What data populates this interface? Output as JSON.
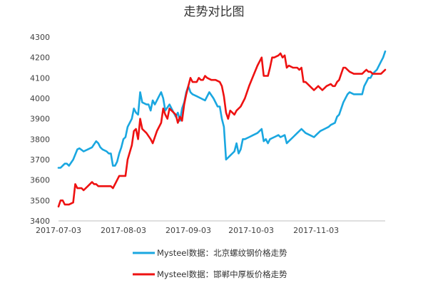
{
  "chart_data": {
    "type": "line",
    "title": "走势对比图",
    "xlabel": "",
    "ylabel": "",
    "ylim": [
      3400,
      4300
    ],
    "yticks": [
      "3400",
      "3500",
      "3600",
      "3700",
      "3800",
      "3900",
      "4000",
      "4100",
      "4200",
      "4300"
    ],
    "xlim": [
      "2017-07-03",
      "2017-12-06"
    ],
    "xticks": [
      "2017-07-03",
      "2017-08-03",
      "2017-09-03",
      "2017-10-03",
      "2017-11-03"
    ],
    "grid": false,
    "legend": "bottom",
    "series": [
      {
        "name": "Mysteel数据：北京螺纹钢价格走势",
        "color": "#1aa7e0",
        "points": [
          [
            "2017-07-03",
            3660
          ],
          [
            "2017-07-04",
            3660
          ],
          [
            "2017-07-05",
            3670
          ],
          [
            "2017-07-06",
            3680
          ],
          [
            "2017-07-07",
            3680
          ],
          [
            "2017-07-08",
            3670
          ],
          [
            "2017-07-10",
            3700
          ],
          [
            "2017-07-12",
            3750
          ],
          [
            "2017-07-13",
            3755
          ],
          [
            "2017-07-15",
            3740
          ],
          [
            "2017-07-17",
            3750
          ],
          [
            "2017-07-19",
            3760
          ],
          [
            "2017-07-21",
            3790
          ],
          [
            "2017-07-22",
            3780
          ],
          [
            "2017-07-23",
            3760
          ],
          [
            "2017-07-24",
            3750
          ],
          [
            "2017-07-26",
            3740
          ],
          [
            "2017-07-27",
            3730
          ],
          [
            "2017-07-28",
            3730
          ],
          [
            "2017-07-29",
            3670
          ],
          [
            "2017-07-30",
            3670
          ],
          [
            "2017-07-31",
            3690
          ],
          [
            "2017-08-01",
            3730
          ],
          [
            "2017-08-02",
            3760
          ],
          [
            "2017-08-03",
            3800
          ],
          [
            "2017-08-04",
            3810
          ],
          [
            "2017-08-05",
            3860
          ],
          [
            "2017-08-07",
            3900
          ],
          [
            "2017-08-08",
            3950
          ],
          [
            "2017-08-09",
            3930
          ],
          [
            "2017-08-10",
            3920
          ],
          [
            "2017-08-11",
            4030
          ],
          [
            "2017-08-12",
            3980
          ],
          [
            "2017-08-14",
            3970
          ],
          [
            "2017-08-15",
            3970
          ],
          [
            "2017-08-16",
            3940
          ],
          [
            "2017-08-17",
            3990
          ],
          [
            "2017-08-18",
            3970
          ],
          [
            "2017-08-20",
            4010
          ],
          [
            "2017-08-21",
            4030
          ],
          [
            "2017-08-22",
            4000
          ],
          [
            "2017-08-23",
            3940
          ],
          [
            "2017-08-25",
            3970
          ],
          [
            "2017-08-26",
            3950
          ],
          [
            "2017-08-28",
            3910
          ],
          [
            "2017-08-29",
            3930
          ],
          [
            "2017-08-30",
            3890
          ],
          [
            "2017-08-31",
            3950
          ],
          [
            "2017-09-01",
            3980
          ],
          [
            "2017-09-02",
            4030
          ],
          [
            "2017-09-03",
            4060
          ],
          [
            "2017-09-04",
            4030
          ],
          [
            "2017-09-05",
            4020
          ],
          [
            "2017-09-07",
            4010
          ],
          [
            "2017-09-09",
            4000
          ],
          [
            "2017-09-11",
            3990
          ],
          [
            "2017-09-13",
            4030
          ],
          [
            "2017-09-15",
            4000
          ],
          [
            "2017-09-17",
            3960
          ],
          [
            "2017-09-18",
            3960
          ],
          [
            "2017-09-19",
            3900
          ],
          [
            "2017-09-20",
            3860
          ],
          [
            "2017-09-21",
            3700
          ],
          [
            "2017-09-23",
            3720
          ],
          [
            "2017-09-25",
            3740
          ],
          [
            "2017-09-26",
            3780
          ],
          [
            "2017-09-27",
            3730
          ],
          [
            "2017-09-28",
            3750
          ],
          [
            "2017-09-29",
            3800
          ],
          [
            "2017-09-30",
            3800
          ],
          [
            "2017-10-02",
            3810
          ],
          [
            "2017-10-04",
            3820
          ],
          [
            "2017-10-06",
            3830
          ],
          [
            "2017-10-07",
            3840
          ],
          [
            "2017-10-08",
            3850
          ],
          [
            "2017-10-09",
            3790
          ],
          [
            "2017-10-10",
            3800
          ],
          [
            "2017-10-11",
            3780
          ],
          [
            "2017-10-12",
            3800
          ],
          [
            "2017-10-14",
            3810
          ],
          [
            "2017-10-16",
            3820
          ],
          [
            "2017-10-17",
            3810
          ],
          [
            "2017-10-19",
            3820
          ],
          [
            "2017-10-20",
            3780
          ],
          [
            "2017-10-21",
            3790
          ],
          [
            "2017-10-23",
            3810
          ],
          [
            "2017-10-25",
            3830
          ],
          [
            "2017-10-27",
            3850
          ],
          [
            "2017-10-29",
            3830
          ],
          [
            "2017-10-31",
            3820
          ],
          [
            "2017-11-02",
            3810
          ],
          [
            "2017-11-03",
            3820
          ],
          [
            "2017-11-05",
            3840
          ],
          [
            "2017-11-07",
            3850
          ],
          [
            "2017-11-09",
            3860
          ],
          [
            "2017-11-10",
            3870
          ],
          [
            "2017-11-12",
            3880
          ],
          [
            "2017-11-13",
            3910
          ],
          [
            "2017-11-14",
            3920
          ],
          [
            "2017-11-16",
            3980
          ],
          [
            "2017-11-18",
            4020
          ],
          [
            "2017-11-19",
            4030
          ],
          [
            "2017-11-21",
            4020
          ],
          [
            "2017-11-23",
            4020
          ],
          [
            "2017-11-25",
            4020
          ],
          [
            "2017-11-26",
            4060
          ],
          [
            "2017-11-27",
            4080
          ],
          [
            "2017-11-28",
            4100
          ],
          [
            "2017-11-29",
            4100
          ],
          [
            "2017-11-30",
            4120
          ],
          [
            "2017-12-02",
            4140
          ],
          [
            "2017-12-04",
            4180
          ],
          [
            "2017-12-05",
            4200
          ],
          [
            "2017-12-06",
            4230
          ]
        ]
      },
      {
        "name": "Mysteel数据：邯郸中厚板价格走势",
        "color": "#ee1111",
        "points": [
          [
            "2017-07-03",
            3470
          ],
          [
            "2017-07-04",
            3500
          ],
          [
            "2017-07-05",
            3500
          ],
          [
            "2017-07-06",
            3480
          ],
          [
            "2017-07-08",
            3480
          ],
          [
            "2017-07-10",
            3490
          ],
          [
            "2017-07-11",
            3580
          ],
          [
            "2017-07-12",
            3560
          ],
          [
            "2017-07-13",
            3560
          ],
          [
            "2017-07-14",
            3560
          ],
          [
            "2017-07-15",
            3550
          ],
          [
            "2017-07-17",
            3570
          ],
          [
            "2017-07-18",
            3580
          ],
          [
            "2017-07-19",
            3590
          ],
          [
            "2017-07-20",
            3580
          ],
          [
            "2017-07-21",
            3580
          ],
          [
            "2017-07-22",
            3570
          ],
          [
            "2017-07-24",
            3570
          ],
          [
            "2017-07-26",
            3570
          ],
          [
            "2017-07-28",
            3570
          ],
          [
            "2017-07-29",
            3560
          ],
          [
            "2017-07-30",
            3580
          ],
          [
            "2017-07-31",
            3600
          ],
          [
            "2017-08-01",
            3620
          ],
          [
            "2017-08-03",
            3620
          ],
          [
            "2017-08-04",
            3620
          ],
          [
            "2017-08-05",
            3700
          ],
          [
            "2017-08-07",
            3770
          ],
          [
            "2017-08-08",
            3840
          ],
          [
            "2017-08-09",
            3850
          ],
          [
            "2017-08-10",
            3800
          ],
          [
            "2017-08-11",
            3900
          ],
          [
            "2017-08-12",
            3850
          ],
          [
            "2017-08-14",
            3830
          ],
          [
            "2017-08-16",
            3800
          ],
          [
            "2017-08-17",
            3780
          ],
          [
            "2017-08-19",
            3840
          ],
          [
            "2017-08-21",
            3880
          ],
          [
            "2017-08-22",
            3950
          ],
          [
            "2017-08-23",
            3920
          ],
          [
            "2017-08-24",
            3900
          ],
          [
            "2017-08-25",
            3950
          ],
          [
            "2017-08-26",
            3940
          ],
          [
            "2017-08-28",
            3920
          ],
          [
            "2017-08-29",
            3880
          ],
          [
            "2017-08-30",
            3910
          ],
          [
            "2017-08-31",
            3890
          ],
          [
            "2017-09-01",
            3970
          ],
          [
            "2017-09-02",
            4020
          ],
          [
            "2017-09-03",
            4060
          ],
          [
            "2017-09-04",
            4100
          ],
          [
            "2017-09-05",
            4080
          ],
          [
            "2017-09-07",
            4080
          ],
          [
            "2017-09-08",
            4100
          ],
          [
            "2017-09-09",
            4090
          ],
          [
            "2017-09-10",
            4090
          ],
          [
            "2017-09-11",
            4110
          ],
          [
            "2017-09-12",
            4100
          ],
          [
            "2017-09-14",
            4090
          ],
          [
            "2017-09-16",
            4090
          ],
          [
            "2017-09-18",
            4080
          ],
          [
            "2017-09-19",
            4060
          ],
          [
            "2017-09-20",
            4010
          ],
          [
            "2017-09-21",
            3930
          ],
          [
            "2017-09-22",
            3900
          ],
          [
            "2017-09-23",
            3940
          ],
          [
            "2017-09-24",
            3930
          ],
          [
            "2017-09-25",
            3920
          ],
          [
            "2017-09-26",
            3940
          ],
          [
            "2017-09-28",
            3960
          ],
          [
            "2017-09-30",
            4000
          ],
          [
            "2017-10-02",
            4060
          ],
          [
            "2017-10-04",
            4110
          ],
          [
            "2017-10-06",
            4160
          ],
          [
            "2017-10-08",
            4200
          ],
          [
            "2017-10-09",
            4110
          ],
          [
            "2017-10-10",
            4110
          ],
          [
            "2017-10-11",
            4110
          ],
          [
            "2017-10-12",
            4150
          ],
          [
            "2017-10-13",
            4200
          ],
          [
            "2017-10-14",
            4200
          ],
          [
            "2017-10-16",
            4210
          ],
          [
            "2017-10-17",
            4220
          ],
          [
            "2017-10-18",
            4200
          ],
          [
            "2017-10-19",
            4210
          ],
          [
            "2017-10-20",
            4150
          ],
          [
            "2017-10-21",
            4160
          ],
          [
            "2017-10-23",
            4150
          ],
          [
            "2017-10-25",
            4150
          ],
          [
            "2017-10-26",
            4140
          ],
          [
            "2017-10-27",
            4150
          ],
          [
            "2017-10-28",
            4080
          ],
          [
            "2017-10-29",
            4080
          ],
          [
            "2017-10-31",
            4060
          ],
          [
            "2017-11-01",
            4050
          ],
          [
            "2017-11-02",
            4040
          ],
          [
            "2017-11-03",
            4050
          ],
          [
            "2017-11-04",
            4060
          ],
          [
            "2017-11-05",
            4050
          ],
          [
            "2017-11-06",
            4040
          ],
          [
            "2017-11-08",
            4060
          ],
          [
            "2017-11-10",
            4070
          ],
          [
            "2017-11-11",
            4060
          ],
          [
            "2017-11-12",
            4060
          ],
          [
            "2017-11-13",
            4080
          ],
          [
            "2017-11-14",
            4090
          ],
          [
            "2017-11-16",
            4150
          ],
          [
            "2017-11-17",
            4150
          ],
          [
            "2017-11-18",
            4140
          ],
          [
            "2017-11-19",
            4130
          ],
          [
            "2017-11-21",
            4120
          ],
          [
            "2017-11-23",
            4120
          ],
          [
            "2017-11-25",
            4120
          ],
          [
            "2017-11-26",
            4130
          ],
          [
            "2017-11-27",
            4140
          ],
          [
            "2017-11-28",
            4130
          ],
          [
            "2017-11-29",
            4130
          ],
          [
            "2017-11-30",
            4120
          ],
          [
            "2017-12-02",
            4120
          ],
          [
            "2017-12-04",
            4120
          ],
          [
            "2017-12-05",
            4130
          ],
          [
            "2017-12-06",
            4140
          ]
        ]
      }
    ]
  }
}
